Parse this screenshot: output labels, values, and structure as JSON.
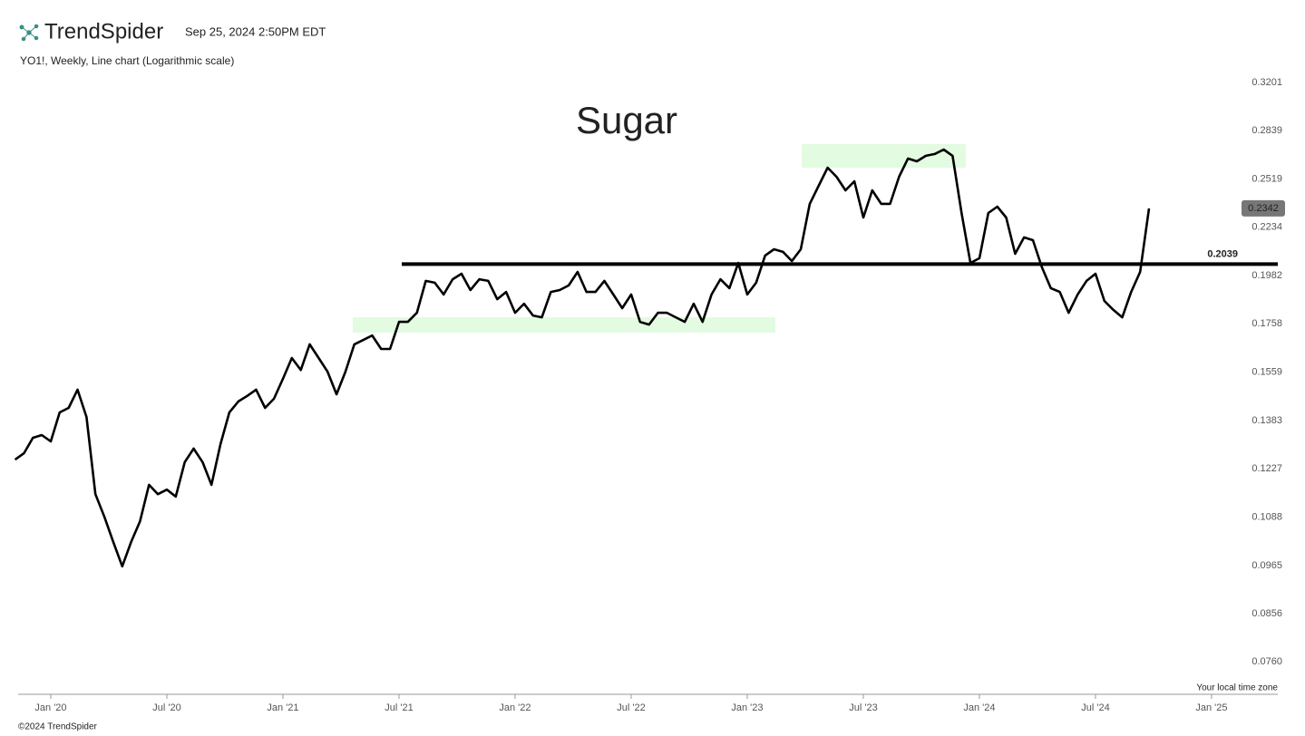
{
  "header": {
    "brand": "TrendSpider",
    "timestamp": "Sep 25, 2024 2:50PM EDT",
    "subtitle": "YO1!, Weekly, Line chart (Logarithmic scale)"
  },
  "footer": {
    "timezone": "Your local time zone",
    "copyright": "©2024 TrendSpider"
  },
  "chart_data": {
    "type": "line",
    "title": "Sugar",
    "log_scale": true,
    "categories": [
      null,
      null,
      null,
      null,
      "Jan '20",
      null,
      null,
      null,
      null,
      null,
      null,
      null,
      null,
      null,
      null,
      null,
      null,
      "Jul '20",
      null,
      null,
      null,
      null,
      null,
      null,
      null,
      null,
      null,
      null,
      null,
      null,
      "Jan '21",
      null,
      null,
      null,
      null,
      null,
      null,
      null,
      null,
      null,
      null,
      null,
      null,
      "Jul '21",
      null,
      null,
      null,
      null,
      null,
      null,
      null,
      null,
      null,
      null,
      null,
      null,
      "Jan '22",
      null,
      null,
      null,
      null,
      null,
      null,
      null,
      null,
      null,
      null,
      null,
      null,
      "Jul '22",
      null,
      null,
      null,
      null,
      null,
      null,
      null,
      null,
      null,
      null,
      null,
      null,
      "Jan '23",
      null,
      null,
      null,
      null,
      null,
      null,
      null,
      null,
      null,
      null,
      null,
      null,
      "Jul '23",
      null,
      null,
      null,
      null,
      null,
      null,
      null,
      null,
      null,
      null,
      null,
      null,
      "Jan '24",
      null,
      null,
      null,
      null,
      null,
      null,
      null,
      null,
      null,
      null,
      null,
      null,
      "Jul '24",
      null,
      null,
      null,
      null,
      null,
      null,
      null,
      null,
      null,
      null,
      null,
      null,
      "Jan '25",
      null,
      null,
      null,
      null,
      null,
      null,
      null
    ],
    "series": [
      {
        "name": "YO1!",
        "color": "#000000",
        "values": [
          0.1255,
          0.1275,
          0.1325,
          0.1334,
          0.1313,
          0.1411,
          0.1427,
          0.1493,
          0.1395,
          0.1152,
          0.1089,
          0.1023,
          0.0963,
          0.1023,
          0.1077,
          0.1179,
          0.1152,
          0.1165,
          0.1145,
          0.1247,
          0.129,
          0.1247,
          0.1179,
          0.1304,
          0.1411,
          0.145,
          0.147,
          0.1493,
          0.1427,
          0.146,
          0.1534,
          0.1615,
          0.1568,
          0.1671,
          0.1615,
          0.1561,
          0.1476,
          0.1561,
          0.1671,
          0.1689,
          0.1708,
          0.1652,
          0.1652,
          0.1767,
          0.1767,
          0.1807,
          0.1956,
          0.1947,
          0.1891,
          0.1964,
          0.1991,
          0.1912,
          0.1964,
          0.1956,
          0.1869,
          0.1903,
          0.1807,
          0.1848,
          0.1795,
          0.1787,
          0.1903,
          0.1912,
          0.1934,
          0.2,
          0.1903,
          0.1903,
          0.1956,
          0.1891,
          0.1828,
          0.1891,
          0.1767,
          0.1755,
          0.1807,
          0.1807,
          0.1787,
          0.1767,
          0.1848,
          0.1767,
          0.1891,
          0.1964,
          0.1921,
          0.2045,
          0.1891,
          0.1947,
          0.2083,
          0.2116,
          0.2102,
          0.2055,
          0.2116,
          0.2368,
          0.2477,
          0.2591,
          0.2533,
          0.2449,
          0.2505,
          0.2289,
          0.2449,
          0.2368,
          0.2368,
          0.2533,
          0.265,
          0.2632,
          0.2668,
          0.268,
          0.271,
          0.2668,
          0.2315,
          0.2045,
          0.2069,
          0.2315,
          0.2352,
          0.2289,
          0.2092,
          0.2179,
          0.2164,
          0.2023,
          0.1921,
          0.1903,
          0.1807,
          0.1891,
          0.1956,
          0.1991,
          0.1861,
          0.182,
          0.1787,
          0.1903,
          0.2,
          0.2342,
          null,
          null,
          null,
          null,
          null,
          null,
          null,
          null,
          null,
          null,
          null,
          null,
          null,
          null
        ]
      }
    ],
    "hline": 0.2039,
    "ylim": [
      0.076,
      0.3201
    ],
    "yticks": [
      {
        "value": 0.076,
        "label": "0.0760"
      },
      0.0856,
      0.0965,
      0.1088,
      0.1227,
      0.1383,
      0.1559,
      0.1758,
      0.1982,
      0.2234,
      0.2519,
      0.2839,
      0.3201
    ]
  }
}
